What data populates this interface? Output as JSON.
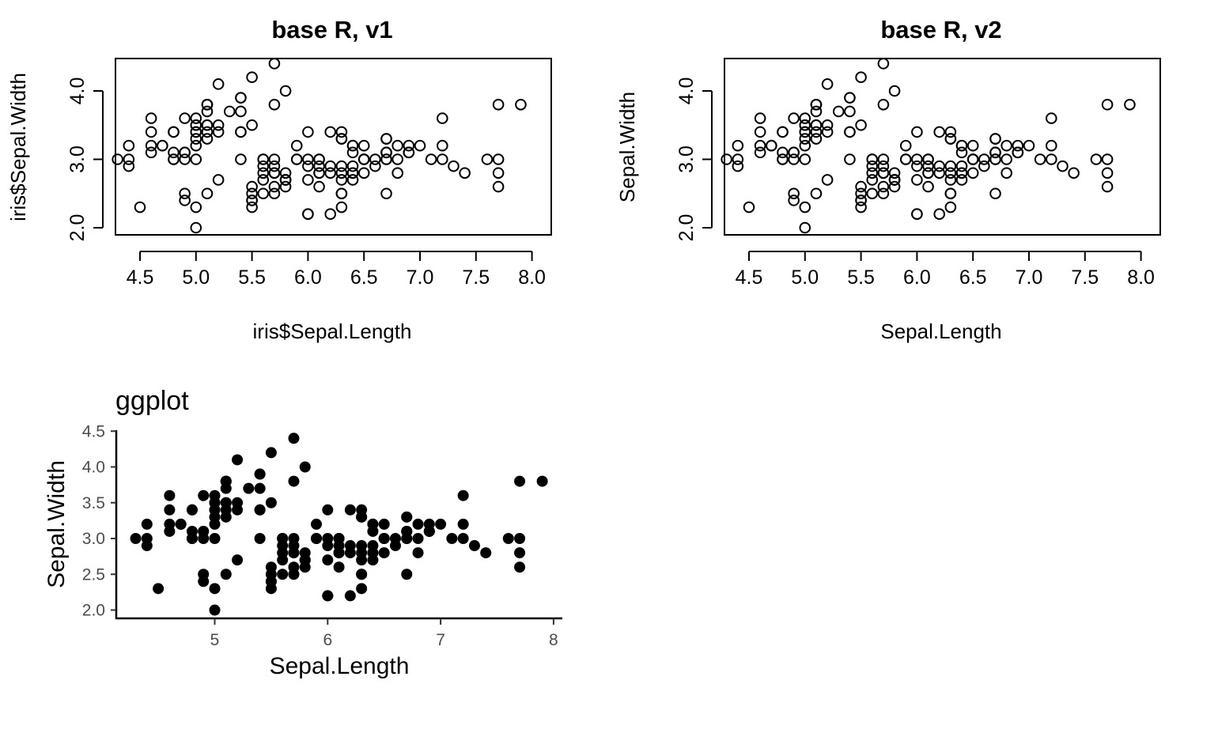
{
  "chart_data": [
    {
      "type": "scatter",
      "title": "base R, v1",
      "xlabel": "iris$Sepal.Length",
      "ylabel": "iris$Sepal.Width",
      "xlim": [
        4.3,
        7.9
      ],
      "ylim": [
        2.0,
        4.4
      ],
      "xticks": [
        "4.5",
        "5.0",
        "5.5",
        "6.0",
        "6.5",
        "7.0",
        "7.5",
        "8.0"
      ],
      "yticks": [
        "2.0",
        "3.0",
        "4.0"
      ],
      "marker": "open-circle",
      "points": "iris"
    },
    {
      "type": "scatter",
      "title": "base R, v2",
      "xlabel": "Sepal.Length",
      "ylabel": "Sepal.Width",
      "xlim": [
        4.3,
        7.9
      ],
      "ylim": [
        2.0,
        4.4
      ],
      "xticks": [
        "4.5",
        "5.0",
        "5.5",
        "6.0",
        "6.5",
        "7.0",
        "7.5",
        "8.0"
      ],
      "yticks": [
        "2.0",
        "3.0",
        "4.0"
      ],
      "marker": "open-circle",
      "points": "iris"
    },
    {
      "type": "scatter",
      "title": "ggplot",
      "xlabel": "Sepal.Length",
      "ylabel": "Sepal.Width",
      "xlim": [
        4.3,
        7.9
      ],
      "ylim": [
        2.0,
        4.4
      ],
      "xticks": [
        "5",
        "6",
        "7",
        "8"
      ],
      "yticks": [
        "2.0",
        "2.5",
        "3.0",
        "3.5",
        "4.0",
        "4.5"
      ],
      "marker": "filled-circle",
      "points": "iris"
    }
  ],
  "iris": {
    "x": [
      5.1,
      4.9,
      4.7,
      4.6,
      5.0,
      5.4,
      4.6,
      5.0,
      4.4,
      4.9,
      5.4,
      4.8,
      4.8,
      4.3,
      5.8,
      5.7,
      5.4,
      5.1,
      5.7,
      5.1,
      5.4,
      5.1,
      4.6,
      5.1,
      4.8,
      5.0,
      5.0,
      5.2,
      5.2,
      4.7,
      4.8,
      5.4,
      5.2,
      5.5,
      4.9,
      5.0,
      5.5,
      4.9,
      4.4,
      5.1,
      5.0,
      4.5,
      4.4,
      5.0,
      5.1,
      4.8,
      5.1,
      4.6,
      5.3,
      5.0,
      7.0,
      6.4,
      6.9,
      5.5,
      6.5,
      5.7,
      6.3,
      4.9,
      6.6,
      5.2,
      5.0,
      5.9,
      6.0,
      6.1,
      5.6,
      6.7,
      5.6,
      5.8,
      6.2,
      5.6,
      5.9,
      6.1,
      6.3,
      6.1,
      6.4,
      6.6,
      6.8,
      6.7,
      6.0,
      5.7,
      5.5,
      5.5,
      5.8,
      6.0,
      5.4,
      6.0,
      6.7,
      6.3,
      5.6,
      5.5,
      5.5,
      6.1,
      5.8,
      5.0,
      5.6,
      5.7,
      5.7,
      6.2,
      5.1,
      5.7,
      6.3,
      5.8,
      7.1,
      6.3,
      6.5,
      7.6,
      4.9,
      7.3,
      6.7,
      7.2,
      6.5,
      6.4,
      6.8,
      5.7,
      5.8,
      6.4,
      6.5,
      7.7,
      7.7,
      6.0,
      6.9,
      5.6,
      7.7,
      6.3,
      6.7,
      7.2,
      6.2,
      6.1,
      6.4,
      7.2,
      7.4,
      7.9,
      6.4,
      6.3,
      6.1,
      7.7,
      6.3,
      6.4,
      6.0,
      6.9,
      6.7,
      6.9,
      5.8,
      6.8,
      6.7,
      6.7,
      6.3,
      6.5,
      6.2,
      5.9
    ],
    "y": [
      3.5,
      3.0,
      3.2,
      3.1,
      3.6,
      3.9,
      3.4,
      3.4,
      2.9,
      3.1,
      3.7,
      3.4,
      3.0,
      3.0,
      4.0,
      4.4,
      3.9,
      3.5,
      3.8,
      3.8,
      3.4,
      3.7,
      3.6,
      3.3,
      3.4,
      3.0,
      3.4,
      3.5,
      3.4,
      3.2,
      3.1,
      3.4,
      4.1,
      4.2,
      3.1,
      3.2,
      3.5,
      3.6,
      3.0,
      3.4,
      3.5,
      2.3,
      3.2,
      3.5,
      3.8,
      3.0,
      3.8,
      3.2,
      3.7,
      3.3,
      3.2,
      3.2,
      3.1,
      2.3,
      2.8,
      2.8,
      3.3,
      2.4,
      2.9,
      2.7,
      2.0,
      3.0,
      2.2,
      2.9,
      2.9,
      3.1,
      3.0,
      2.7,
      2.2,
      2.5,
      3.2,
      2.8,
      2.5,
      2.8,
      2.9,
      3.0,
      2.8,
      3.0,
      2.9,
      2.6,
      2.4,
      2.4,
      2.7,
      2.7,
      3.0,
      3.4,
      3.1,
      2.3,
      3.0,
      2.5,
      2.6,
      3.0,
      2.6,
      2.3,
      2.7,
      3.0,
      2.9,
      2.9,
      2.5,
      2.8,
      3.3,
      2.7,
      3.0,
      2.9,
      3.0,
      3.0,
      2.5,
      2.9,
      2.5,
      3.6,
      3.2,
      2.7,
      3.0,
      2.5,
      2.8,
      3.2,
      3.0,
      3.8,
      2.6,
      2.2,
      3.2,
      2.8,
      2.8,
      2.7,
      3.3,
      3.2,
      2.8,
      3.0,
      2.8,
      3.0,
      2.8,
      3.8,
      2.8,
      2.8,
      2.6,
      3.0,
      3.4,
      3.1,
      3.0,
      3.1,
      3.1,
      3.1,
      2.7,
      3.2,
      3.3,
      3.0,
      2.5,
      3.0,
      3.4,
      3.0
    ]
  }
}
